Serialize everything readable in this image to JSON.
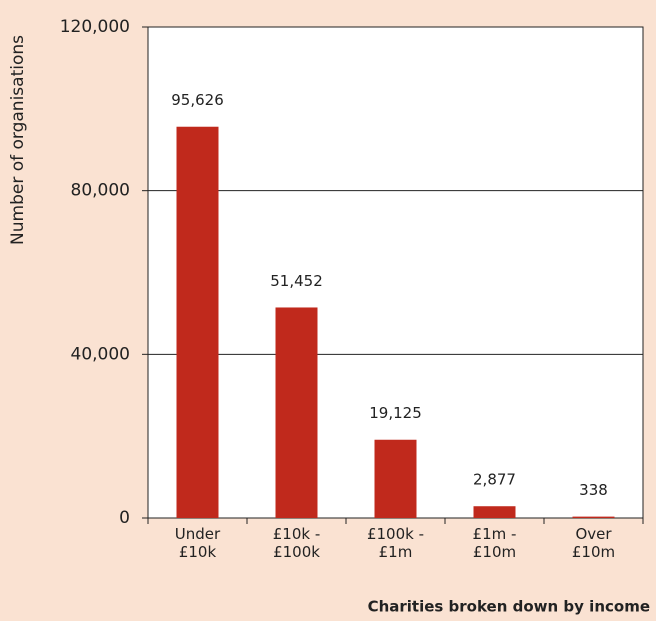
{
  "chart_data": {
    "type": "bar",
    "categories": [
      "Under\n£10k",
      "£10k -\n£100k",
      "£100k -\n£1m",
      "£1m -\n£10m",
      "Over\n£10m"
    ],
    "values": [
      95626,
      51452,
      19125,
      2877,
      338
    ],
    "value_labels": [
      "95,626",
      "51,452",
      "19,125",
      "2,877",
      "338"
    ],
    "color": "#c0291c",
    "ylim": [
      0,
      120000
    ],
    "yticks": [
      {
        "value": 0,
        "label": "0"
      },
      {
        "value": 40000,
        "label": "40,000"
      },
      {
        "value": 80000,
        "label": "80,000"
      },
      {
        "value": 120000,
        "label": "120,000"
      }
    ],
    "ylabel": "Number of organisations",
    "xlabel": "Charities broken down by income",
    "grid": true
  }
}
